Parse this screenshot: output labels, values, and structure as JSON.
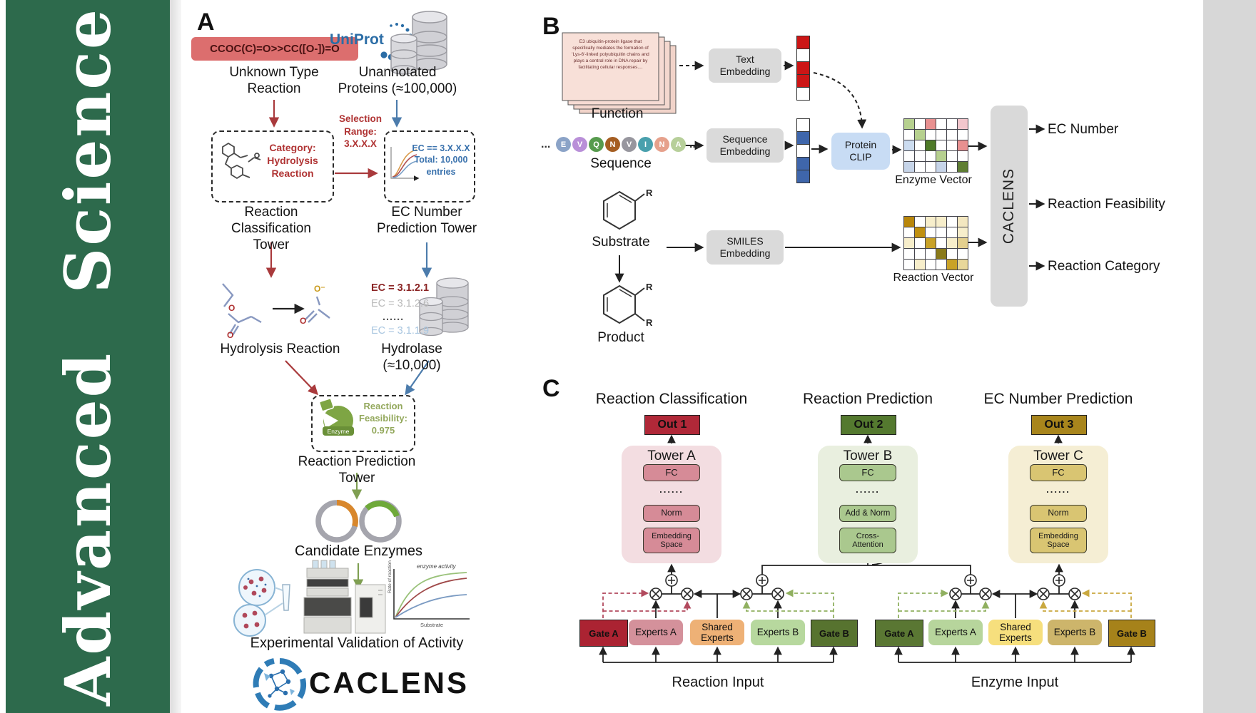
{
  "sidebar": {
    "journal": "Advanced Science"
  },
  "panelA": {
    "label": "A",
    "smiles": "CCOC(C)=O>>CC([O-])=O",
    "unknown_reaction": "Unknown Type\nReaction",
    "uniprot": "UniProt",
    "unannotated": "Unannotated\nProteins (≈100,000)",
    "classification_box": "Category:\nHydrolysis\nReaction",
    "selection": "Selection\nRange:\n3.X.X.X",
    "ec_box": "EC == 3.X.X.X\nTotal: 10,000\nentries",
    "tower1": "Reaction\nClassification Tower",
    "tower2": "EC Number\nPrediction Tower",
    "hydrolysis": "Hydrolysis Reaction",
    "ec_list": [
      "EC = 3.1.2.1",
      "EC = 3.1.2.6",
      "......",
      "EC = 3.1.1.9"
    ],
    "hydrolase": "Hydrolase (≈10,000)",
    "enzyme_label": "Enzyme",
    "feasibility": "Reaction\nFeasibility:\n0.975",
    "tower3": "Reaction Prediction Tower",
    "candidate": "Candidate Enzymes",
    "chart": {
      "series_label": "enzyme activity",
      "ylabel": "Rate of reaction",
      "xlabel": "Substrate"
    },
    "validation": "Experimental Validation of Activity",
    "brand": "CACLENS"
  },
  "panelB": {
    "label": "B",
    "function_card": "E3 ubiquitin-protein ligase that specifically mediates the formation of 'Lys-6'-linked polyubiquitin chains and plays a central role in DNA repair by facilitating cellular responses....",
    "function": "Function",
    "ellipsis": "...",
    "sequence_circles": [
      {
        "t": "E",
        "c": "#8ba3c7"
      },
      {
        "t": "V",
        "c": "#b98fd8"
      },
      {
        "t": "Q",
        "c": "#579b4e"
      },
      {
        "t": "N",
        "c": "#a55e22"
      },
      {
        "t": "V",
        "c": "#97969e"
      },
      {
        "t": "I",
        "c": "#49a0ad"
      },
      {
        "t": "N",
        "c": "#e6a18c"
      },
      {
        "t": "A",
        "c": "#b7cf9a"
      }
    ],
    "sequence": "Sequence",
    "substrate": "Substrate",
    "product": "Product",
    "r_label": "R",
    "text_embedding": "Text\nEmbedding",
    "sequence_embedding": "Sequence\nEmbedding",
    "smiles_embedding": "SMILES\nEmbedding",
    "protein_clip": "Protein\nCLIP",
    "enzyme_vector": "Enzyme Vector",
    "reaction_vector": "Reaction Vector",
    "caclens": "CACLENS",
    "outputs": [
      "EC Number",
      "Reaction Feasibility",
      "Reaction Category"
    ]
  },
  "panelC": {
    "label": "C",
    "columns": [
      {
        "title": "Reaction Classification",
        "out": "Out 1",
        "tower": "Tower A",
        "boxes": [
          "FC",
          "......",
          "Norm",
          "Embedding\nSpace"
        ]
      },
      {
        "title": "Reaction Prediction",
        "out": "Out 2",
        "tower": "Tower B",
        "boxes": [
          "FC",
          "......",
          "Add & Norm",
          "Cross-\nAttention"
        ]
      },
      {
        "title": "EC Number Prediction",
        "out": "Out 3",
        "tower": "Tower C",
        "boxes": [
          "FC",
          "......",
          "Norm",
          "Embedding\nSpace"
        ]
      }
    ],
    "moe_left": {
      "gate_a": "Gate A",
      "experts_a": "Experts A",
      "shared": "Shared\nExperts",
      "experts_b": "Experts B",
      "gate_b": "Gate B",
      "input": "Reaction Input"
    },
    "moe_right": {
      "gate_a": "Gate A",
      "experts_a": "Experts A",
      "shared": "Shared\nExperts",
      "experts_b": "Experts B",
      "gate_b": "Gate B",
      "input": "Enzyme Input"
    }
  },
  "matrices": {
    "text_vector": [
      [
        "#cc1616"
      ],
      [
        "#ffffff"
      ],
      [
        "#cc1616"
      ],
      [
        "#cc1616"
      ],
      [
        "#ffffff"
      ]
    ],
    "seq_vector": [
      [
        "#ffffff"
      ],
      [
        "#3f66ab"
      ],
      [
        "#ffffff"
      ],
      [
        "#3f66ab"
      ],
      [
        "#3f66ab"
      ]
    ],
    "enzyme": [
      [
        "#b6d08f",
        "#ffffff",
        "#e89090",
        "#ffffff",
        "#ffffff",
        "#f2c6cc"
      ],
      [
        "#ffffff",
        "#b6d08f",
        "#ffffff",
        "#ffffff",
        "#ffffff",
        "#ffffff"
      ],
      [
        "#ccdcf0",
        "#ffffff",
        "#4e7a28",
        "#ffffff",
        "#ffffff",
        "#e89090"
      ],
      [
        "#ffffff",
        "#ffffff",
        "#ffffff",
        "#b6d08f",
        "#ffffff",
        "#ffffff"
      ],
      [
        "#c6d4e8",
        "#ffffff",
        "#ffffff",
        "#c6d4e8",
        "#ffffff",
        "#5f7e33"
      ]
    ],
    "reaction": [
      [
        "#b8860b",
        "#ffffff",
        "#f7eecb",
        "#f7eecb",
        "#ffffff",
        "#f3e7c0"
      ],
      [
        "#ffffff",
        "#c09010",
        "#ffffff",
        "#ffffff",
        "#ffffff",
        "#f7eecb"
      ],
      [
        "#f7eecb",
        "#ffffff",
        "#c9a227",
        "#ffffff",
        "#f7eecb",
        "#e3cf8e"
      ],
      [
        "#ffffff",
        "#ffffff",
        "#ffffff",
        "#8a7a1a",
        "#ffffff",
        "#ffffff"
      ],
      [
        "#ffffff",
        "#f7eecb",
        "#ffffff",
        "#ffffff",
        "#c9a227",
        "#e8d79a"
      ]
    ]
  },
  "colors": {
    "sidebar_green": "#2d6a4c",
    "smiles_red": "#dc6e6e",
    "out1": "#b02838",
    "out2": "#54792f",
    "out3": "#a8851c",
    "towerA_bg": "#f3dde1",
    "towerA_box": "#d68b97",
    "towerB_bg": "#e9efdf",
    "towerB_box": "#aac88e",
    "towerC_bg": "#f5eed4",
    "towerC_box": "#d9c572",
    "gateA_left": "#ab2332",
    "expertsA_left": "#d4919b",
    "shared_left": "#eeb176",
    "expertsB_left": "#b7d89e",
    "gateB_left": "#57732f",
    "gateA_right": "#5a7733",
    "expertsA_right": "#b7d59c",
    "shared_right": "#f6df7d",
    "expertsB_right": "#cdb56b",
    "gateB_right": "#a6821a"
  }
}
